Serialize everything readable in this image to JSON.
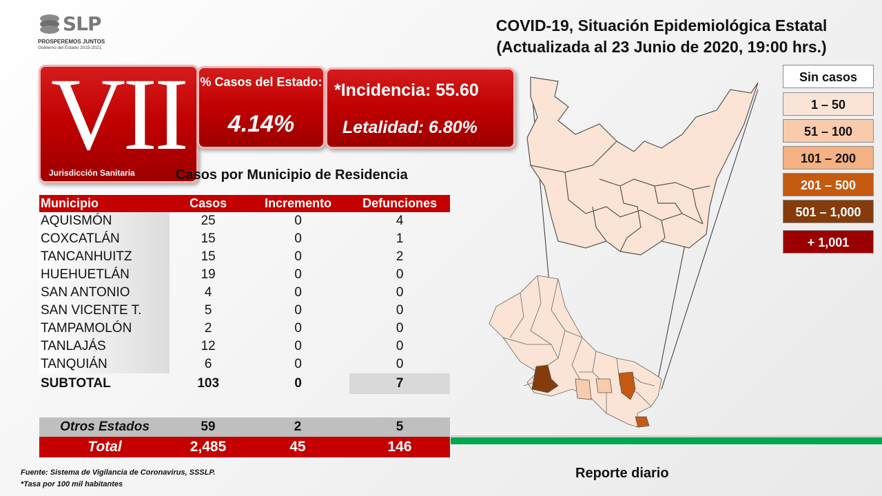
{
  "logo": {
    "text": "SLP",
    "slogan": "PROSPEREMOS JUNTOS",
    "gov": "Gobierno del Estado 2015-2021"
  },
  "title": {
    "line1": "COVID-19, Situación Epidemiológica Estatal",
    "line2": "(Actualizada al 23 Junio de 2020, 19:00 hrs.)"
  },
  "jurisdiction": {
    "roman": "VII",
    "label": "Jurisdicción Sanitaria"
  },
  "percent_box": {
    "label": "% Casos del Estado:",
    "value": "4.14%"
  },
  "incidence_box": {
    "incidence": "*Incidencia: 55.60",
    "lethality": "Letalidad: 6.80%"
  },
  "table": {
    "title": "Casos por Municipio  de Residencia",
    "headers": [
      "Municipio",
      "Casos",
      "Incremento",
      "Defunciones"
    ],
    "rows": [
      [
        "AQUISMÓN",
        "25",
        "0",
        "4"
      ],
      [
        "COXCATLÁN",
        "15",
        "0",
        "1"
      ],
      [
        "TANCANHUITZ",
        "15",
        "0",
        "2"
      ],
      [
        "HUEHUETLÁN",
        "19",
        "0",
        "0"
      ],
      [
        "SAN ANTONIO",
        "4",
        "0",
        "0"
      ],
      [
        "SAN VICENTE T.",
        "5",
        "0",
        "0"
      ],
      [
        "TAMPAMOLÓN",
        "2",
        "0",
        "0"
      ],
      [
        "TANLAJÁS",
        "12",
        "0",
        "0"
      ],
      [
        "TANQUIÁN",
        "6",
        "0",
        "0"
      ]
    ],
    "subtotal": [
      "SUBTOTAL",
      "103",
      "0",
      "7"
    ],
    "otros": [
      "Otros Estados",
      "59",
      "2",
      "5"
    ],
    "total": [
      "Total",
      "2,485",
      "45",
      "146"
    ]
  },
  "legend": [
    {
      "label": "Sin casos",
      "color": "#ffffff"
    },
    {
      "label": "1 – 50",
      "color": "#fbe4d5"
    },
    {
      "label": "51 – 100",
      "color": "#f8cbad"
    },
    {
      "label": "101 – 200",
      "color": "#f4b183"
    },
    {
      "label": "201 – 500",
      "color": "#c55a11"
    },
    {
      "label": "501 – 1,000",
      "color": "#843c0c"
    },
    {
      "label": "+ 1,001",
      "color": "#9b0000"
    }
  ],
  "footer": {
    "source": "Fuente: Sistema de Vigilancia de Coronavirus, SSSLP.",
    "note": "*Tasa por 100 mil habitantes",
    "report": "Reporte diario"
  },
  "colors": {
    "accent_red": "#c40000",
    "green_line": "#00a650"
  }
}
